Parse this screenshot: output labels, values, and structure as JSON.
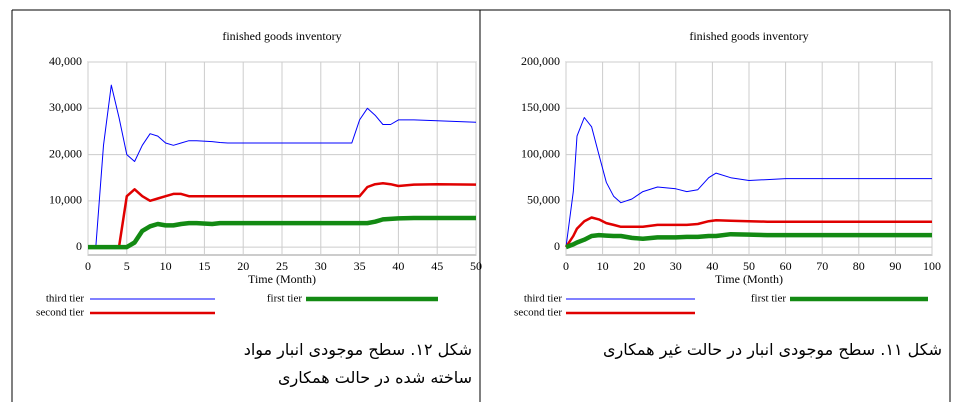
{
  "chart_data": [
    {
      "type": "line",
      "title": "finished goods inventory",
      "x_label": "Time (Month)",
      "caption": "شکل ۱۲. سطح موجودی انبار مواد ساخته شده در حالت همکاری",
      "x": [
        0,
        1,
        2,
        3,
        4,
        5,
        6,
        7,
        8,
        9,
        10,
        11,
        12,
        13,
        14,
        16,
        17,
        18,
        20,
        25,
        30,
        34,
        35,
        36,
        37,
        38,
        39,
        40,
        42,
        45,
        50
      ],
      "series": [
        {
          "name": "third tier",
          "color": "#0000ff",
          "values": [
            0,
            0,
            22000,
            35000,
            28000,
            20000,
            18500,
            22000,
            24500,
            24000,
            22500,
            22000,
            22500,
            23000,
            23000,
            22800,
            22600,
            22500,
            22500,
            22500,
            22500,
            22500,
            27500,
            30000,
            28500,
            26500,
            26500,
            27500,
            27500,
            27300,
            27000
          ]
        },
        {
          "name": "second tier",
          "color": "#e00000",
          "values": [
            0,
            0,
            0,
            0,
            0,
            11000,
            12500,
            11000,
            10000,
            10500,
            11000,
            11500,
            11500,
            11000,
            11000,
            11000,
            11000,
            11000,
            11000,
            11000,
            11000,
            11000,
            11000,
            13000,
            13600,
            13800,
            13600,
            13200,
            13500,
            13600,
            13500
          ]
        },
        {
          "name": "first tier",
          "color": "#138a13",
          "values": [
            0,
            0,
            0,
            0,
            0,
            0,
            1000,
            3500,
            4500,
            5000,
            4700,
            4700,
            5000,
            5200,
            5200,
            5000,
            5200,
            5200,
            5200,
            5200,
            5200,
            5200,
            5200,
            5200,
            5500,
            6000,
            6100,
            6200,
            6300,
            6300,
            6300
          ]
        }
      ],
      "xlim": [
        0,
        50
      ],
      "xticks": [
        0,
        5,
        10,
        15,
        20,
        25,
        30,
        35,
        40,
        45,
        50
      ],
      "ylim": [
        -1700,
        40000
      ],
      "yticks": [
        0,
        {
          "value": 10000,
          "label": "10,000"
        },
        {
          "value": 20000,
          "label": "20,000"
        },
        {
          "value": 30000,
          "label": "30,000"
        },
        {
          "value": 40000,
          "label": "40,000"
        }
      ],
      "grid": true
    },
    {
      "type": "line",
      "title": "finished goods inventory",
      "x_label": "Time (Month)",
      "caption": "شکل ۱۱. سطح موجودی انبار در حالت غیر همکاری",
      "x": [
        0,
        2,
        3,
        5,
        7,
        9,
        11,
        13,
        15,
        18,
        21,
        25,
        30,
        33,
        36,
        39,
        41,
        45,
        50,
        55,
        60,
        70,
        80,
        90,
        100
      ],
      "series": [
        {
          "name": "third tier",
          "color": "#0000ff",
          "values": [
            0,
            60000,
            120000,
            140000,
            130000,
            100000,
            70000,
            55000,
            48000,
            52000,
            60000,
            65000,
            63000,
            60000,
            62000,
            75000,
            80000,
            75000,
            72000,
            73000,
            74000,
            74000,
            74000,
            74000,
            74000
          ]
        },
        {
          "name": "second tier",
          "color": "#e00000",
          "values": [
            0,
            12000,
            20000,
            28000,
            32000,
            30000,
            26000,
            24000,
            22000,
            22000,
            22000,
            24000,
            24000,
            24000,
            25000,
            28000,
            29000,
            28500,
            28000,
            27500,
            27500,
            27500,
            27500,
            27500,
            27500
          ]
        },
        {
          "name": "first tier",
          "color": "#138a13",
          "values": [
            0,
            3000,
            5000,
            8000,
            12000,
            13000,
            12500,
            12000,
            12000,
            10000,
            9000,
            10500,
            10500,
            11000,
            11000,
            12000,
            12000,
            14000,
            13500,
            13000,
            13000,
            13000,
            13000,
            13000,
            13000
          ]
        }
      ],
      "xlim": [
        0,
        100
      ],
      "xticks": [
        0,
        10,
        20,
        30,
        40,
        50,
        60,
        70,
        80,
        90,
        100
      ],
      "ylim": [
        -8500,
        200000
      ],
      "yticks": [
        0,
        {
          "value": 50000,
          "label": "50,000"
        },
        {
          "value": 100000,
          "label": "100,000"
        },
        {
          "value": 150000,
          "label": "150,000"
        },
        {
          "value": 200000,
          "label": "200,000"
        }
      ],
      "grid": true
    }
  ]
}
